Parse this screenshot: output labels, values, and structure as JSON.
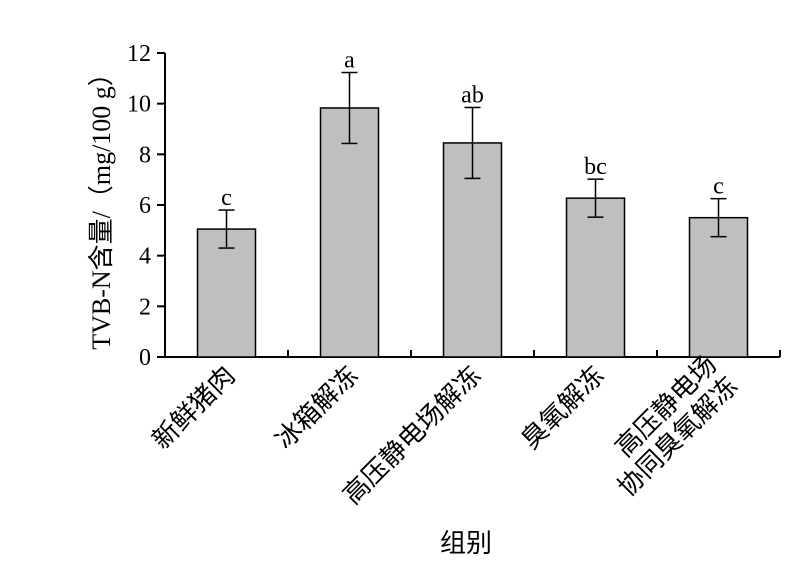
{
  "chart_data": {
    "type": "bar",
    "categories": [
      "新鲜猪肉",
      "冰箱解冻",
      "高压静电场解冻",
      "臭氧解冻",
      "高压静电场\n协同臭氧解冻"
    ],
    "values": [
      5.05,
      9.83,
      8.45,
      6.27,
      5.5
    ],
    "errors": [
      0.75,
      1.4,
      1.4,
      0.75,
      0.75
    ],
    "significance": [
      "c",
      "a",
      "ab",
      "bc",
      "c"
    ],
    "xlabel": "组别",
    "ylabel": "TVB-N含量/（mg/100 g）",
    "ylim": [
      0,
      12
    ],
    "yticks": [
      0,
      2,
      4,
      6,
      8,
      10,
      12
    ],
    "bar_color": "#bfbfbf",
    "grid": false
  }
}
